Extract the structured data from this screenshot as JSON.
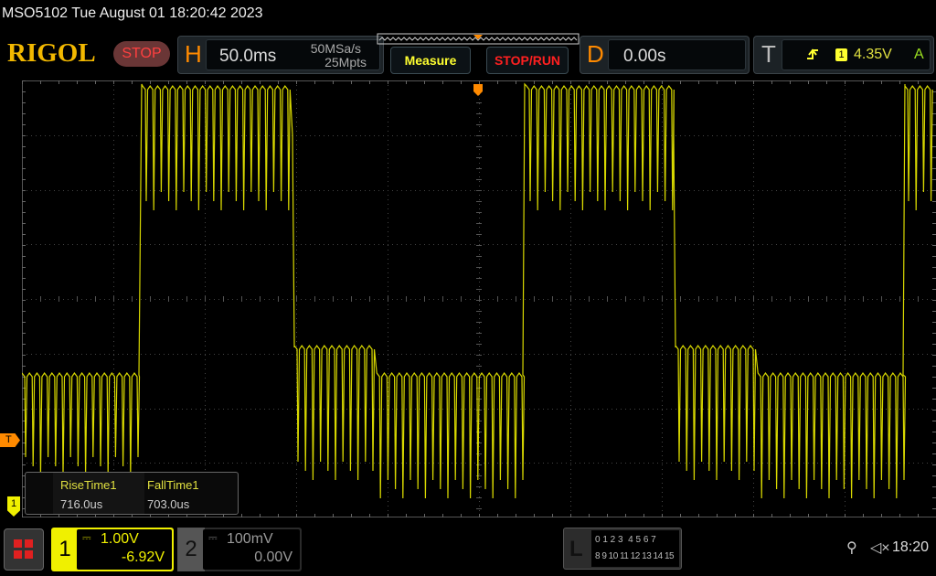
{
  "header": {
    "title": "MSO5102  Tue August 01 18:20:42 2023",
    "logo": "RIGOL",
    "run_state": "STOP"
  },
  "horizontal": {
    "letter": "H",
    "timebase": "50.0ms",
    "sample_rate": "50MSa/s",
    "memory_depth": "25Mpts"
  },
  "buttons": {
    "measure": "Measure",
    "stop_run": "STOP/RUN"
  },
  "delay": {
    "letter": "D",
    "value": "0.00s"
  },
  "trigger": {
    "letter": "T",
    "slope_icon": "rising-edge-icon",
    "source": "1",
    "level": "4.35V",
    "mode": "A",
    "marker": "T"
  },
  "measurements": [
    {
      "label": "RiseTime1",
      "value": "716.0us"
    },
    {
      "label": "FallTime1",
      "value": "703.0us"
    }
  ],
  "channels": [
    {
      "num": "1",
      "coupling_icon": "dc-coupling-icon",
      "scale": "1.00V",
      "offset": "-6.92V",
      "active": true,
      "color": "#f0f000"
    },
    {
      "num": "2",
      "coupling_icon": "dc-coupling-icon",
      "scale": "100mV",
      "offset": "0.00V",
      "active": false,
      "color": "#888888"
    }
  ],
  "la": {
    "letter": "L",
    "row1": "0 1 2 3  4 5 6 7",
    "row2": "8 9 10 11 12 13 14 15"
  },
  "status": {
    "usb_icon": "usb-icon",
    "sound_icon": "muted-speaker-icon",
    "clock": "18:20"
  },
  "colors": {
    "trace": "#f0f000",
    "accent": "#ff8a00"
  }
}
